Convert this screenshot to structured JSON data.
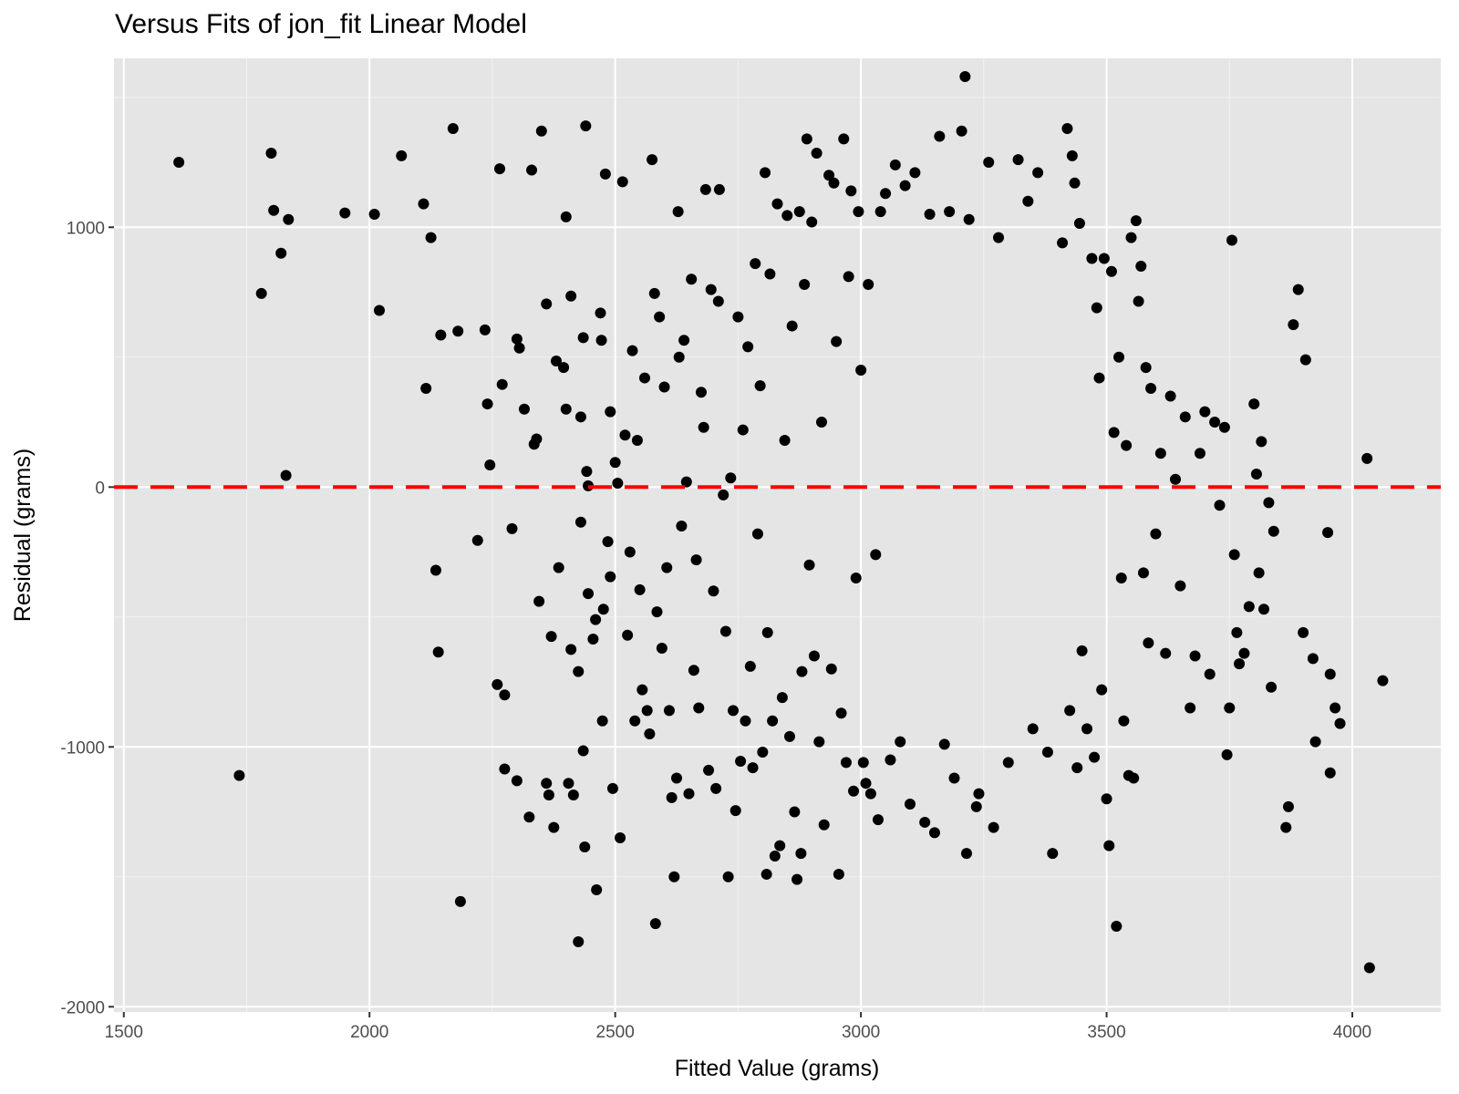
{
  "chart_data": {
    "type": "scatter",
    "title": "Versus Fits of jon_fit Linear Model",
    "xlabel": "Fitted Value (grams)",
    "ylabel": "Residual (grams)",
    "xlim": [
      1480,
      4180
    ],
    "ylim": [
      -2020,
      1650
    ],
    "x_ticks": [
      1500,
      2000,
      2500,
      3000,
      3500,
      4000
    ],
    "x_tick_labels": [
      "1500",
      "2000",
      "2500",
      "3000",
      "3500",
      "4000"
    ],
    "y_ticks": [
      -2000,
      -1000,
      0,
      1000
    ],
    "y_tick_labels": [
      "-2000",
      "-1000",
      "0",
      "1000"
    ],
    "grid": true,
    "point_color": "#000000",
    "panel_background": "#e5e5e5",
    "reference_line": {
      "y": 0,
      "color": "#ff0000",
      "style": "dashed"
    },
    "series": [
      {
        "points": [
          [
            1612,
            1250
          ],
          [
            1780,
            745
          ],
          [
            1800,
            1285
          ],
          [
            1805,
            1065
          ],
          [
            1820,
            900
          ],
          [
            1835,
            1030
          ],
          [
            1830,
            45
          ],
          [
            1735,
            -1110
          ],
          [
            1950,
            1055
          ],
          [
            2010,
            1050
          ],
          [
            2020,
            680
          ],
          [
            2065,
            1275
          ],
          [
            2110,
            1090
          ],
          [
            2115,
            380
          ],
          [
            2125,
            960
          ],
          [
            2135,
            -320
          ],
          [
            2140,
            -635
          ],
          [
            2145,
            585
          ],
          [
            2170,
            1380
          ],
          [
            2180,
            600
          ],
          [
            2185,
            -1595
          ],
          [
            2220,
            -205
          ],
          [
            2235,
            605
          ],
          [
            2240,
            320
          ],
          [
            2245,
            85
          ],
          [
            2260,
            -760
          ],
          [
            2265,
            1225
          ],
          [
            2270,
            395
          ],
          [
            2275,
            -800
          ],
          [
            2275,
            -1085
          ],
          [
            2290,
            -160
          ],
          [
            2300,
            570
          ],
          [
            2305,
            535
          ],
          [
            2300,
            -1130
          ],
          [
            2315,
            300
          ],
          [
            2325,
            -1270
          ],
          [
            2330,
            1220
          ],
          [
            2335,
            165
          ],
          [
            2340,
            185
          ],
          [
            2345,
            -440
          ],
          [
            2350,
            1370
          ],
          [
            2360,
            705
          ],
          [
            2360,
            -1140
          ],
          [
            2365,
            -1185
          ],
          [
            2370,
            -575
          ],
          [
            2375,
            -1310
          ],
          [
            2380,
            485
          ],
          [
            2385,
            -310
          ],
          [
            2395,
            460
          ],
          [
            2400,
            1040
          ],
          [
            2400,
            300
          ],
          [
            2405,
            -1140
          ],
          [
            2410,
            735
          ],
          [
            2410,
            -625
          ],
          [
            2415,
            -1185
          ],
          [
            2425,
            -710
          ],
          [
            2425,
            -1750
          ],
          [
            2430,
            270
          ],
          [
            2430,
            -135
          ],
          [
            2435,
            575
          ],
          [
            2435,
            -1015
          ],
          [
            2438,
            -1385
          ],
          [
            2440,
            1390
          ],
          [
            2442,
            60
          ],
          [
            2445,
            5
          ],
          [
            2445,
            -410
          ],
          [
            2455,
            -585
          ],
          [
            2460,
            -510
          ],
          [
            2462,
            -1550
          ],
          [
            2470,
            670
          ],
          [
            2472,
            565
          ],
          [
            2474,
            -900
          ],
          [
            2476,
            -470
          ],
          [
            2480,
            1205
          ],
          [
            2485,
            -210
          ],
          [
            2490,
            290
          ],
          [
            2490,
            -345
          ],
          [
            2495,
            -1160
          ],
          [
            2500,
            95
          ],
          [
            2505,
            15
          ],
          [
            2510,
            -1350
          ],
          [
            2515,
            1175
          ],
          [
            2520,
            200
          ],
          [
            2525,
            -570
          ],
          [
            2530,
            -250
          ],
          [
            2535,
            525
          ],
          [
            2540,
            -900
          ],
          [
            2545,
            180
          ],
          [
            2550,
            -395
          ],
          [
            2555,
            -780
          ],
          [
            2560,
            420
          ],
          [
            2565,
            -860
          ],
          [
            2570,
            -950
          ],
          [
            2575,
            1260
          ],
          [
            2580,
            745
          ],
          [
            2582,
            -1680
          ],
          [
            2585,
            -480
          ],
          [
            2590,
            655
          ],
          [
            2595,
            -620
          ],
          [
            2600,
            385
          ],
          [
            2605,
            -310
          ],
          [
            2610,
            -860
          ],
          [
            2615,
            -1195
          ],
          [
            2620,
            -1500
          ],
          [
            2625,
            -1120
          ],
          [
            2628,
            1060
          ],
          [
            2630,
            500
          ],
          [
            2635,
            -150
          ],
          [
            2640,
            565
          ],
          [
            2645,
            20
          ],
          [
            2650,
            -1180
          ],
          [
            2655,
            800
          ],
          [
            2660,
            -705
          ],
          [
            2665,
            -280
          ],
          [
            2670,
            -850
          ],
          [
            2675,
            365
          ],
          [
            2680,
            230
          ],
          [
            2684,
            1145
          ],
          [
            2690,
            -1090
          ],
          [
            2695,
            760
          ],
          [
            2700,
            -400
          ],
          [
            2705,
            -1160
          ],
          [
            2710,
            715
          ],
          [
            2712,
            1145
          ],
          [
            2720,
            -30
          ],
          [
            2725,
            -555
          ],
          [
            2730,
            -1500
          ],
          [
            2735,
            35
          ],
          [
            2740,
            -860
          ],
          [
            2745,
            -1245
          ],
          [
            2750,
            655
          ],
          [
            2755,
            -1055
          ],
          [
            2760,
            220
          ],
          [
            2765,
            -900
          ],
          [
            2770,
            540
          ],
          [
            2775,
            -690
          ],
          [
            2780,
            -1080
          ],
          [
            2785,
            860
          ],
          [
            2790,
            -180
          ],
          [
            2795,
            390
          ],
          [
            2800,
            -1020
          ],
          [
            2805,
            1210
          ],
          [
            2808,
            -1490
          ],
          [
            2810,
            -560
          ],
          [
            2815,
            820
          ],
          [
            2820,
            -900
          ],
          [
            2825,
            -1420
          ],
          [
            2830,
            1090
          ],
          [
            2835,
            -1380
          ],
          [
            2840,
            -810
          ],
          [
            2845,
            180
          ],
          [
            2850,
            1045
          ],
          [
            2855,
            -960
          ],
          [
            2860,
            620
          ],
          [
            2865,
            -1250
          ],
          [
            2870,
            -1510
          ],
          [
            2875,
            1060
          ],
          [
            2878,
            -1410
          ],
          [
            2880,
            -710
          ],
          [
            2885,
            780
          ],
          [
            2890,
            1340
          ],
          [
            2895,
            -300
          ],
          [
            2900,
            1020
          ],
          [
            2905,
            -650
          ],
          [
            2910,
            1285
          ],
          [
            2915,
            -980
          ],
          [
            2920,
            250
          ],
          [
            2925,
            -1300
          ],
          [
            2935,
            1200
          ],
          [
            2940,
            -700
          ],
          [
            2945,
            1170
          ],
          [
            2950,
            560
          ],
          [
            2955,
            -1490
          ],
          [
            2960,
            -870
          ],
          [
            2965,
            1340
          ],
          [
            2970,
            -1060
          ],
          [
            2975,
            810
          ],
          [
            2980,
            1140
          ],
          [
            2985,
            -1170
          ],
          [
            2990,
            -350
          ],
          [
            2995,
            1060
          ],
          [
            3000,
            450
          ],
          [
            3005,
            -1060
          ],
          [
            3010,
            -1140
          ],
          [
            3015,
            780
          ],
          [
            3020,
            -1180
          ],
          [
            3030,
            -260
          ],
          [
            3035,
            -1280
          ],
          [
            3040,
            1060
          ],
          [
            3050,
            1130
          ],
          [
            3060,
            -1050
          ],
          [
            3070,
            1240
          ],
          [
            3080,
            -980
          ],
          [
            3090,
            1160
          ],
          [
            3100,
            -1220
          ],
          [
            3110,
            1210
          ],
          [
            3130,
            -1290
          ],
          [
            3140,
            1050
          ],
          [
            3150,
            -1330
          ],
          [
            3160,
            1350
          ],
          [
            3170,
            -990
          ],
          [
            3180,
            1060
          ],
          [
            3190,
            -1120
          ],
          [
            3205,
            1370
          ],
          [
            3212,
            1580
          ],
          [
            3215,
            -1410
          ],
          [
            3220,
            1030
          ],
          [
            3235,
            -1230
          ],
          [
            3240,
            -1180
          ],
          [
            3260,
            1250
          ],
          [
            3270,
            -1310
          ],
          [
            3280,
            960
          ],
          [
            3300,
            -1060
          ],
          [
            3320,
            1260
          ],
          [
            3340,
            1100
          ],
          [
            3350,
            -930
          ],
          [
            3360,
            1210
          ],
          [
            3380,
            -1020
          ],
          [
            3390,
            -1410
          ],
          [
            3410,
            940
          ],
          [
            3420,
            1380
          ],
          [
            3425,
            -860
          ],
          [
            3430,
            1275
          ],
          [
            3435,
            1170
          ],
          [
            3440,
            -1080
          ],
          [
            3445,
            1015
          ],
          [
            3450,
            -630
          ],
          [
            3460,
            -930
          ],
          [
            3470,
            880
          ],
          [
            3475,
            -1040
          ],
          [
            3480,
            690
          ],
          [
            3485,
            420
          ],
          [
            3490,
            -780
          ],
          [
            3495,
            880
          ],
          [
            3500,
            -1200
          ],
          [
            3505,
            -1380
          ],
          [
            3510,
            830
          ],
          [
            3515,
            210
          ],
          [
            3520,
            -1690
          ],
          [
            3525,
            500
          ],
          [
            3530,
            -350
          ],
          [
            3535,
            -900
          ],
          [
            3540,
            160
          ],
          [
            3545,
            -1110
          ],
          [
            3550,
            960
          ],
          [
            3555,
            -1120
          ],
          [
            3560,
            1025
          ],
          [
            3565,
            715
          ],
          [
            3570,
            850
          ],
          [
            3575,
            -330
          ],
          [
            3580,
            460
          ],
          [
            3585,
            -600
          ],
          [
            3590,
            380
          ],
          [
            3600,
            -180
          ],
          [
            3610,
            130
          ],
          [
            3620,
            -640
          ],
          [
            3630,
            350
          ],
          [
            3640,
            30
          ],
          [
            3650,
            -380
          ],
          [
            3660,
            270
          ],
          [
            3670,
            -850
          ],
          [
            3680,
            -650
          ],
          [
            3690,
            130
          ],
          [
            3700,
            290
          ],
          [
            3710,
            -720
          ],
          [
            3720,
            250
          ],
          [
            3730,
            -70
          ],
          [
            3740,
            230
          ],
          [
            3745,
            -1030
          ],
          [
            3750,
            -850
          ],
          [
            3755,
            950
          ],
          [
            3760,
            -260
          ],
          [
            3765,
            -560
          ],
          [
            3770,
            -680
          ],
          [
            3780,
            -640
          ],
          [
            3790,
            -460
          ],
          [
            3800,
            320
          ],
          [
            3805,
            50
          ],
          [
            3810,
            -330
          ],
          [
            3815,
            175
          ],
          [
            3820,
            -470
          ],
          [
            3830,
            -60
          ],
          [
            3835,
            -770
          ],
          [
            3840,
            -170
          ],
          [
            3865,
            -1310
          ],
          [
            3870,
            -1230
          ],
          [
            3880,
            625
          ],
          [
            3890,
            760
          ],
          [
            3900,
            -560
          ],
          [
            3905,
            490
          ],
          [
            3920,
            -660
          ],
          [
            3925,
            -980
          ],
          [
            3950,
            -175
          ],
          [
            3955,
            -720
          ],
          [
            3955,
            -1100
          ],
          [
            3965,
            -850
          ],
          [
            3975,
            -910
          ],
          [
            4030,
            110
          ],
          [
            4035,
            -1850
          ],
          [
            4062,
            -745
          ]
        ]
      }
    ]
  }
}
